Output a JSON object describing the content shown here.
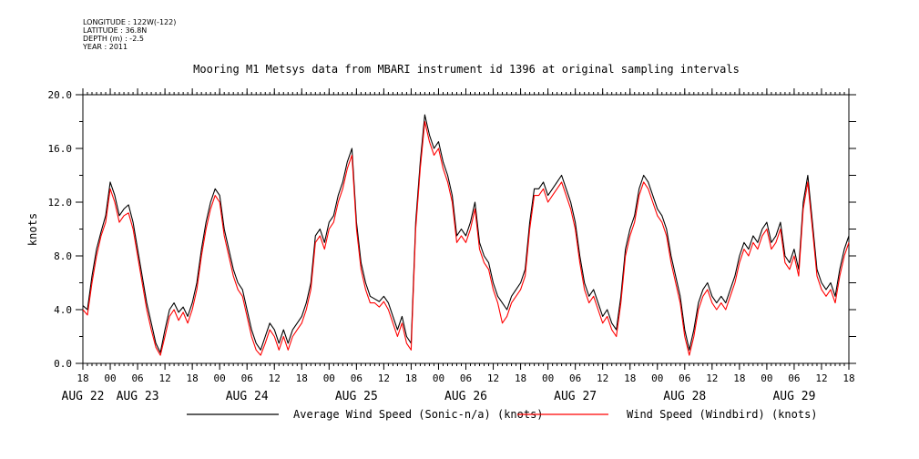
{
  "metadata": {
    "longitude": "LONGITUDE : 122W(-122)",
    "latitude": "LATITUDE : 36.8N",
    "depth": "DEPTH (m) : -2.5",
    "year": "YEAR : 2011"
  },
  "chart_data": {
    "type": "line",
    "title": "Mooring M1 Metsys data from MBARI instrument id 1396 at original sampling intervals",
    "ylabel": "knots",
    "xlabel": "",
    "ylim": [
      0,
      20
    ],
    "y_ticks": [
      "0.0",
      "4.0",
      "8.0",
      "12.0",
      "16.0",
      "20.0"
    ],
    "x_range_hours": [
      0,
      168
    ],
    "x_hour_ticks": [
      "18",
      "00",
      "06",
      "12",
      "18",
      "00",
      "06",
      "12",
      "18",
      "00",
      "06",
      "12",
      "18",
      "00",
      "06",
      "12",
      "18",
      "00",
      "06",
      "12",
      "18",
      "00",
      "06",
      "12",
      "18",
      "00",
      "06",
      "12",
      "18"
    ],
    "x_day_labels": [
      {
        "label": "AUG 22",
        "hour": 0
      },
      {
        "label": "AUG 23",
        "hour": 12
      },
      {
        "label": "AUG 24",
        "hour": 36
      },
      {
        "label": "AUG 25",
        "hour": 60
      },
      {
        "label": "AUG 26",
        "hour": 84
      },
      {
        "label": "AUG 27",
        "hour": 108
      },
      {
        "label": "AUG 28",
        "hour": 132
      },
      {
        "label": "AUG 29",
        "hour": 156
      }
    ],
    "grid": false,
    "legend_position": "bottom",
    "series": [
      {
        "name": "Average Wind Speed (Sonic-n/a) (knots)",
        "color": "#000000",
        "x": [
          0,
          1,
          2,
          3,
          4,
          5,
          6,
          7,
          8,
          9,
          10,
          11,
          12,
          13,
          14,
          15,
          16,
          17,
          18,
          19,
          20,
          21,
          22,
          23,
          24,
          25,
          26,
          27,
          28,
          29,
          30,
          31,
          32,
          33,
          34,
          35,
          36,
          37,
          38,
          39,
          40,
          41,
          42,
          43,
          44,
          45,
          46,
          47,
          48,
          49,
          50,
          51,
          52,
          53,
          54,
          55,
          56,
          57,
          58,
          59,
          60,
          61,
          62,
          63,
          64,
          65,
          66,
          67,
          68,
          69,
          70,
          71,
          72,
          73,
          74,
          75,
          76,
          77,
          78,
          79,
          80,
          81,
          82,
          83,
          84,
          85,
          86,
          87,
          88,
          89,
          90,
          91,
          92,
          93,
          94,
          95,
          96,
          97,
          98,
          99,
          100,
          101,
          102,
          103,
          104,
          105,
          106,
          107,
          108,
          109,
          110,
          111,
          112,
          113,
          114,
          115,
          116,
          117,
          118,
          119,
          120,
          121,
          122,
          123,
          124,
          125,
          126,
          127,
          128,
          129,
          130,
          131,
          132,
          133,
          134,
          135,
          136,
          137,
          138,
          139,
          140,
          141,
          142,
          143,
          144,
          145,
          146,
          147,
          148,
          149,
          150,
          151,
          152,
          153,
          154,
          155,
          156,
          157,
          158,
          159,
          160,
          161,
          162,
          163,
          164,
          165,
          166,
          167,
          168
        ],
        "values": [
          4.3,
          4.0,
          6.5,
          8.5,
          9.8,
          11.0,
          13.5,
          12.5,
          11.0,
          11.5,
          11.8,
          10.5,
          8.5,
          6.5,
          4.5,
          3.0,
          1.5,
          0.8,
          2.5,
          4.0,
          4.5,
          3.8,
          4.2,
          3.5,
          4.5,
          6.0,
          8.5,
          10.5,
          12.0,
          13.0,
          12.5,
          10.0,
          8.5,
          7.0,
          6.0,
          5.5,
          4.0,
          2.5,
          1.5,
          1.0,
          2.0,
          3.0,
          2.5,
          1.5,
          2.5,
          1.5,
          2.5,
          3.0,
          3.5,
          4.5,
          6.0,
          9.5,
          10.0,
          9.0,
          10.5,
          11.0,
          12.5,
          13.5,
          15.0,
          16.0,
          10.5,
          7.5,
          6.0,
          5.0,
          4.8,
          4.6,
          5.0,
          4.5,
          3.5,
          2.5,
          3.5,
          2.0,
          1.5,
          10.5,
          15.0,
          18.5,
          17.0,
          16.0,
          16.5,
          15.0,
          14.0,
          12.5,
          9.5,
          10.0,
          9.5,
          10.5,
          12.0,
          9.0,
          8.0,
          7.5,
          6.0,
          5.0,
          4.5,
          4.0,
          5.0,
          5.5,
          6.0,
          7.0,
          10.5,
          13.0,
          13.0,
          13.5,
          12.5,
          13.0,
          13.5,
          14.0,
          13.0,
          12.0,
          10.5,
          8.0,
          6.0,
          5.0,
          5.5,
          4.5,
          3.5,
          4.0,
          3.0,
          2.5,
          5.0,
          8.5,
          10.0,
          11.0,
          13.0,
          14.0,
          13.5,
          12.5,
          11.5,
          11.0,
          10.0,
          8.0,
          6.5,
          5.0,
          2.5,
          1.0,
          2.5,
          4.5,
          5.5,
          6.0,
          5.0,
          4.5,
          5.0,
          4.5,
          5.5,
          6.5,
          8.0,
          9.0,
          8.5,
          9.5,
          9.0,
          10.0,
          10.5,
          9.0,
          9.5,
          10.5,
          8.0,
          7.5,
          8.5,
          7.0,
          12.0,
          14.0,
          10.5,
          7.0,
          6.0,
          5.5,
          6.0,
          5.0,
          7.0,
          8.5,
          9.5
        ]
      },
      {
        "name": "Wind Speed (Windbird) (knots)",
        "color": "#ff0000",
        "x": [
          0,
          1,
          2,
          3,
          4,
          5,
          6,
          7,
          8,
          9,
          10,
          11,
          12,
          13,
          14,
          15,
          16,
          17,
          18,
          19,
          20,
          21,
          22,
          23,
          24,
          25,
          26,
          27,
          28,
          29,
          30,
          31,
          32,
          33,
          34,
          35,
          36,
          37,
          38,
          39,
          40,
          41,
          42,
          43,
          44,
          45,
          46,
          47,
          48,
          49,
          50,
          51,
          52,
          53,
          54,
          55,
          56,
          57,
          58,
          59,
          60,
          61,
          62,
          63,
          64,
          65,
          66,
          67,
          68,
          69,
          70,
          71,
          72,
          73,
          74,
          75,
          76,
          77,
          78,
          79,
          80,
          81,
          82,
          83,
          84,
          85,
          86,
          87,
          88,
          89,
          90,
          91,
          92,
          93,
          94,
          95,
          96,
          97,
          98,
          99,
          100,
          101,
          102,
          103,
          104,
          105,
          106,
          107,
          108,
          109,
          110,
          111,
          112,
          113,
          114,
          115,
          116,
          117,
          118,
          119,
          120,
          121,
          122,
          123,
          124,
          125,
          126,
          127,
          128,
          129,
          130,
          131,
          132,
          133,
          134,
          135,
          136,
          137,
          138,
          139,
          140,
          141,
          142,
          143,
          144,
          145,
          146,
          147,
          148,
          149,
          150,
          151,
          152,
          153,
          154,
          155,
          156,
          157,
          158,
          159,
          160,
          161,
          162,
          163,
          164,
          165,
          166,
          167,
          168
        ],
        "values": [
          4.0,
          3.6,
          6.0,
          8.0,
          9.5,
          10.5,
          13.0,
          12.0,
          10.5,
          11.0,
          11.2,
          10.0,
          8.0,
          6.0,
          4.0,
          2.5,
          1.2,
          0.6,
          2.0,
          3.5,
          4.0,
          3.2,
          3.8,
          3.0,
          4.0,
          5.5,
          8.0,
          10.0,
          11.5,
          12.5,
          12.0,
          9.5,
          8.0,
          6.5,
          5.5,
          5.0,
          3.5,
          2.0,
          1.0,
          0.6,
          1.5,
          2.5,
          2.0,
          1.0,
          2.0,
          1.0,
          2.0,
          2.5,
          3.0,
          4.0,
          5.5,
          9.0,
          9.5,
          8.5,
          10.0,
          10.5,
          12.0,
          13.0,
          14.5,
          15.5,
          10.0,
          7.0,
          5.5,
          4.5,
          4.5,
          4.2,
          4.6,
          4.0,
          3.0,
          2.0,
          3.0,
          1.5,
          1.0,
          10.0,
          14.5,
          18.0,
          16.5,
          15.5,
          16.0,
          14.5,
          13.5,
          12.0,
          9.0,
          9.5,
          9.0,
          10.0,
          11.5,
          8.5,
          7.5,
          7.0,
          5.5,
          4.5,
          3.0,
          3.5,
          4.5,
          5.0,
          5.5,
          6.5,
          10.0,
          12.5,
          12.5,
          13.0,
          12.0,
          12.5,
          13.0,
          13.5,
          12.5,
          11.5,
          10.0,
          7.5,
          5.5,
          4.5,
          5.0,
          4.0,
          3.0,
          3.5,
          2.5,
          2.0,
          4.5,
          8.0,
          9.5,
          10.5,
          12.5,
          13.5,
          13.0,
          12.0,
          11.0,
          10.5,
          9.5,
          7.5,
          6.0,
          4.5,
          2.0,
          0.6,
          2.0,
          4.0,
          5.0,
          5.5,
          4.5,
          4.0,
          4.5,
          4.0,
          5.0,
          6.0,
          7.5,
          8.5,
          8.0,
          9.0,
          8.5,
          9.5,
          10.0,
          8.5,
          9.0,
          10.0,
          7.5,
          7.0,
          8.0,
          6.5,
          11.5,
          13.5,
          10.0,
          6.5,
          5.5,
          5.0,
          5.5,
          4.5,
          6.5,
          8.0,
          9.0
        ]
      }
    ]
  }
}
